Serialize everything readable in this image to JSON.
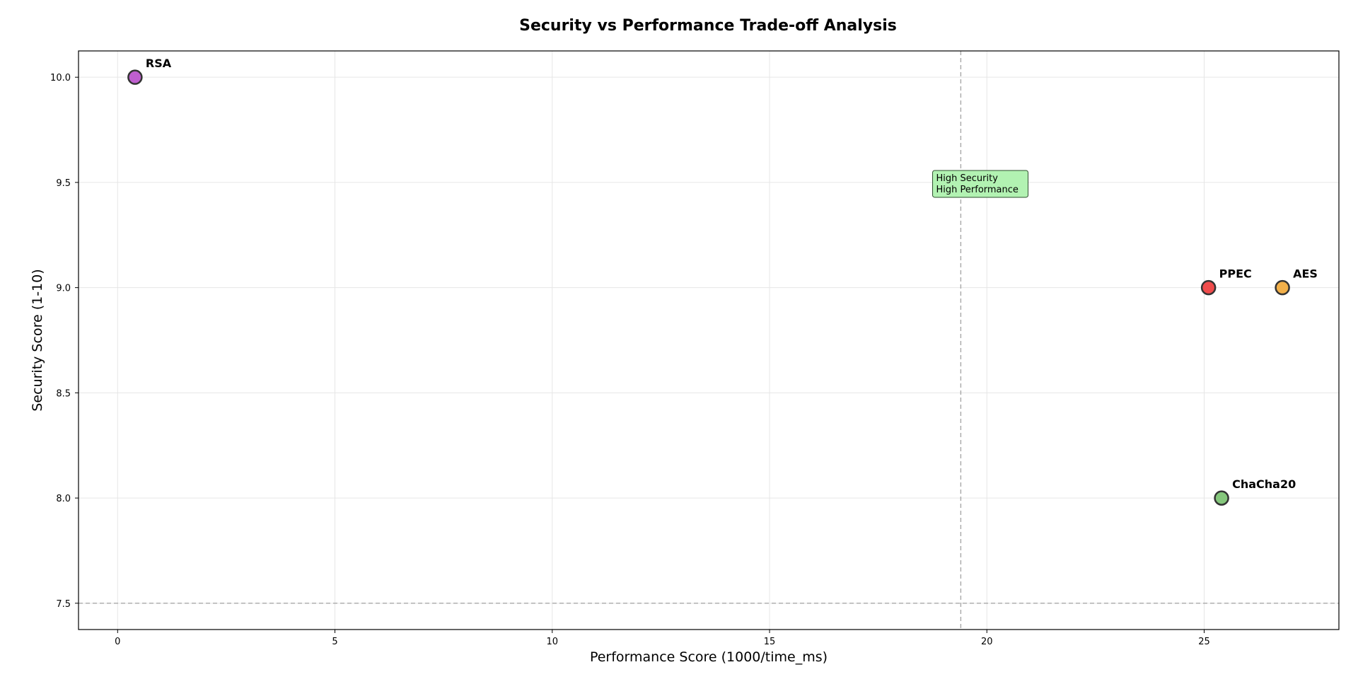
{
  "chart_data": {
    "type": "scatter",
    "title": "Security vs Performance Trade-off Analysis",
    "xlabel": "Performance Score (1000/time_ms)",
    "ylabel": "Security Score (1-10)",
    "xlim": [
      -0.9,
      28.1
    ],
    "ylim": [
      7.375,
      10.125
    ],
    "xticks": [
      0,
      5,
      10,
      15,
      20,
      25
    ],
    "yticks": [
      7.5,
      8.0,
      8.5,
      9.0,
      9.5,
      10.0
    ],
    "xtick_labels": [
      "0",
      "5",
      "10",
      "15",
      "20",
      "25"
    ],
    "ytick_labels": [
      "7.5",
      "8.0",
      "8.5",
      "9.0",
      "9.5",
      "10.0"
    ],
    "grid": true,
    "points": [
      {
        "name": "RSA",
        "x": 0.4,
        "y": 10.0,
        "color": "#bf5fcf"
      },
      {
        "name": "PPEC",
        "x": 25.1,
        "y": 9.0,
        "color": "#f04c4c"
      },
      {
        "name": "AES",
        "x": 26.8,
        "y": 9.0,
        "color": "#f2b04a"
      },
      {
        "name": "ChaCha20",
        "x": 25.4,
        "y": 8.0,
        "color": "#85c77c"
      }
    ],
    "reference_lines": {
      "vertical_x": 19.4,
      "horizontal_y": 7.5
    },
    "annotation": {
      "lines": [
        "High Security",
        "High Performance"
      ],
      "x": 18.8,
      "y": 9.52,
      "background": "#b2f2b2"
    }
  }
}
